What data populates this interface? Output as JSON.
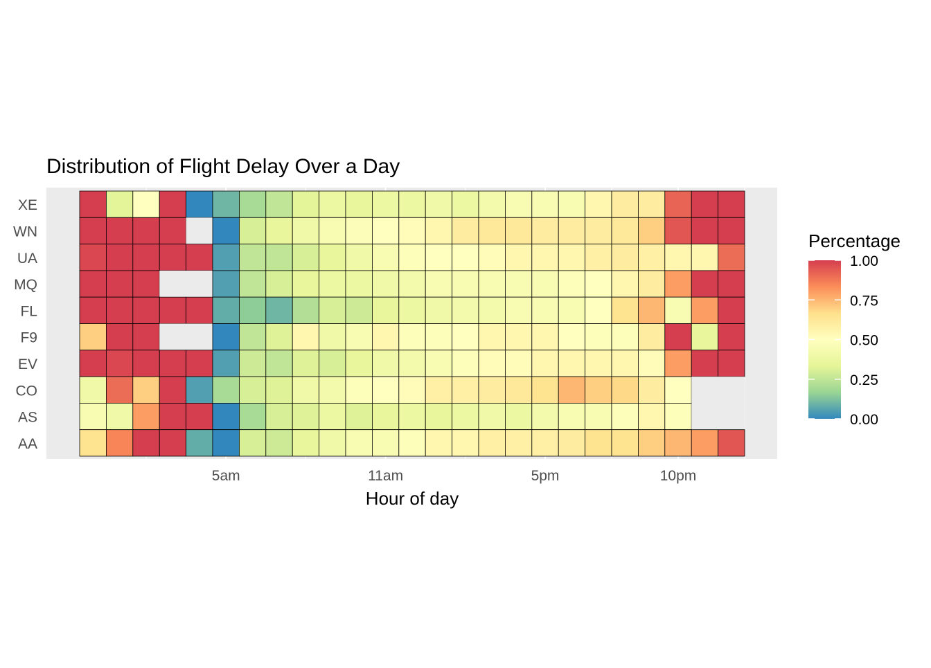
{
  "chart_data": {
    "type": "heatmap",
    "title": "Distribution of Flight Delay Over a Day",
    "xlabel": "Hour of day",
    "ylabel": "",
    "x_hours": [
      0,
      1,
      2,
      3,
      4,
      5,
      6,
      7,
      8,
      9,
      10,
      11,
      12,
      13,
      14,
      15,
      16,
      17,
      18,
      19,
      20,
      21,
      22,
      23,
      24
    ],
    "x_ticks": [
      {
        "hour": 5,
        "label": "5am"
      },
      {
        "hour": 11,
        "label": "11am"
      },
      {
        "hour": 17,
        "label": "5pm"
      },
      {
        "hour": 22,
        "label": "10pm"
      }
    ],
    "xlim": [
      -2.5,
      25
    ],
    "carriers": [
      "XE",
      "WN",
      "UA",
      "MQ",
      "FL",
      "F9",
      "EV",
      "CO",
      "AS",
      "AA"
    ],
    "values": {
      "XE": [
        1.0,
        0.33,
        0.5,
        1.0,
        0.0,
        0.1,
        0.2,
        0.25,
        0.33,
        0.38,
        0.35,
        0.38,
        0.38,
        0.4,
        0.38,
        0.42,
        0.45,
        0.45,
        0.45,
        0.55,
        0.6,
        0.6,
        0.92,
        1.0,
        1.0
      ],
      "WN": [
        1.0,
        1.0,
        1.0,
        1.0,
        null,
        0.0,
        0.3,
        0.35,
        0.4,
        0.45,
        0.47,
        0.5,
        0.52,
        0.55,
        0.6,
        0.62,
        0.62,
        0.6,
        0.6,
        0.6,
        0.62,
        0.7,
        0.95,
        1.0,
        1.0
      ],
      "UA": [
        0.98,
        1.0,
        1.0,
        1.0,
        1.0,
        0.05,
        0.25,
        0.25,
        0.3,
        0.35,
        0.4,
        0.45,
        0.48,
        0.5,
        0.5,
        0.52,
        0.55,
        0.55,
        0.55,
        0.58,
        0.6,
        0.58,
        0.55,
        0.55,
        0.9
      ],
      "MQ": [
        1.0,
        1.0,
        1.0,
        null,
        null,
        0.05,
        0.25,
        0.3,
        0.35,
        0.38,
        0.38,
        0.4,
        0.42,
        0.45,
        0.45,
        0.45,
        0.45,
        0.45,
        0.48,
        0.5,
        0.55,
        0.6,
        0.8,
        1.0,
        1.0
      ],
      "FL": [
        1.0,
        1.0,
        1.0,
        1.0,
        1.0,
        0.08,
        0.15,
        0.1,
        0.22,
        0.3,
        0.28,
        0.35,
        0.38,
        0.4,
        0.42,
        0.42,
        0.45,
        0.45,
        0.45,
        0.5,
        0.65,
        0.75,
        0.45,
        0.8,
        1.0
      ],
      "F9": [
        0.7,
        1.0,
        1.0,
        null,
        null,
        0.0,
        0.25,
        0.32,
        0.55,
        0.4,
        0.45,
        0.55,
        0.48,
        0.48,
        0.5,
        0.55,
        0.55,
        0.55,
        0.5,
        0.48,
        0.48,
        0.6,
        1.0,
        0.35,
        1.0
      ],
      "EV": [
        1.0,
        0.98,
        1.0,
        1.0,
        1.0,
        0.05,
        0.28,
        0.25,
        0.32,
        0.3,
        0.35,
        0.4,
        0.42,
        0.45,
        0.48,
        0.52,
        0.52,
        0.55,
        0.55,
        0.55,
        0.55,
        0.52,
        0.8,
        1.0,
        1.0
      ],
      "CO": [
        0.4,
        0.9,
        0.7,
        1.0,
        0.05,
        0.2,
        0.3,
        0.32,
        0.4,
        0.42,
        0.48,
        0.5,
        0.52,
        0.58,
        0.58,
        0.6,
        0.62,
        0.65,
        0.75,
        0.7,
        0.68,
        0.6,
        0.5,
        null,
        null
      ],
      "AS": [
        0.45,
        0.4,
        0.8,
        1.0,
        1.0,
        0.0,
        0.2,
        0.3,
        0.32,
        0.38,
        0.32,
        0.35,
        0.38,
        0.35,
        0.38,
        0.4,
        0.38,
        0.42,
        0.45,
        0.45,
        0.48,
        0.55,
        0.48,
        null,
        null
      ],
      "AA": [
        0.65,
        0.85,
        1.0,
        1.0,
        0.08,
        0.0,
        0.3,
        0.28,
        0.35,
        0.4,
        0.45,
        0.45,
        0.48,
        0.55,
        0.55,
        0.58,
        0.58,
        0.58,
        0.6,
        0.65,
        0.65,
        0.7,
        0.75,
        0.8,
        0.95
      ]
    },
    "legend": {
      "title": "Percentage",
      "placement": "right",
      "ticks": [
        1.0,
        0.75,
        0.5,
        0.25,
        0.0
      ],
      "tick_labels": [
        "1.00",
        "0.75",
        "0.50",
        "0.25",
        "0.00"
      ]
    },
    "palette": [
      "#3288BD",
      "#99D594",
      "#E6F598",
      "#FFFFBF",
      "#FEE08B",
      "#FC8D59",
      "#D53E4F"
    ],
    "missing_color": "#EBEBEB",
    "panel_background": "#EBEBEB",
    "text_color": "#4D4D4D"
  }
}
